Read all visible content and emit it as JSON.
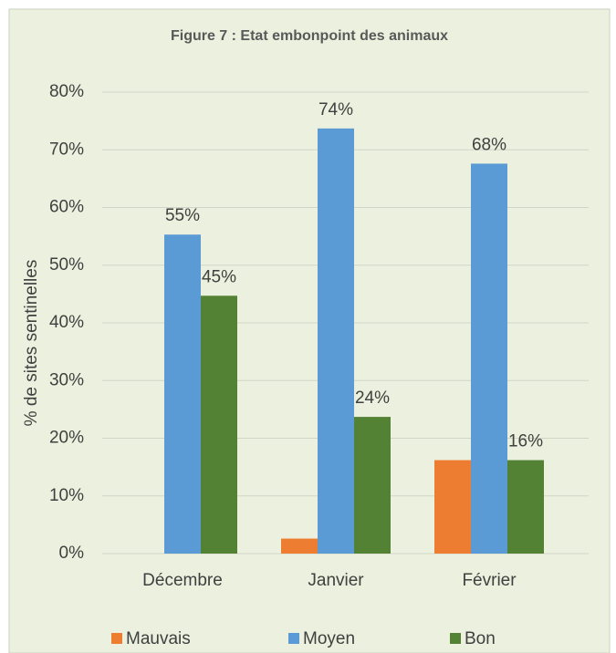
{
  "chart_data": {
    "type": "bar",
    "title": "Figure 7 : Etat embonpoint des animaux",
    "y_label": "% de sites sentinelles",
    "categories": [
      "Décembre",
      "Janvier",
      "Février"
    ],
    "series": [
      {
        "name": "Mauvais",
        "color": "#ed7d31",
        "values": [
          0,
          2.6,
          16.2
        ]
      },
      {
        "name": "Moyen",
        "color": "#5b9bd5",
        "values": [
          55.3,
          73.7,
          67.6
        ],
        "value_labels": [
          "55%",
          "74%",
          "68%"
        ]
      },
      {
        "name": "Bon",
        "color": "#548235",
        "values": [
          44.7,
          23.7,
          16.2
        ],
        "value_labels": [
          "45%",
          "24%",
          "16%"
        ]
      }
    ],
    "ylim": [
      0,
      80
    ],
    "yticks": [
      {
        "value": 0,
        "label": "0%"
      },
      {
        "value": 10,
        "label": "10%"
      },
      {
        "value": 20,
        "label": "20%"
      },
      {
        "value": 30,
        "label": "30%"
      },
      {
        "value": 40,
        "label": "40%"
      },
      {
        "value": 50,
        "label": "50%"
      },
      {
        "value": 60,
        "label": "60%"
      },
      {
        "value": 70,
        "label": "70%"
      },
      {
        "value": 80,
        "label": "80%"
      }
    ],
    "grid": true,
    "legend": "bottom"
  }
}
